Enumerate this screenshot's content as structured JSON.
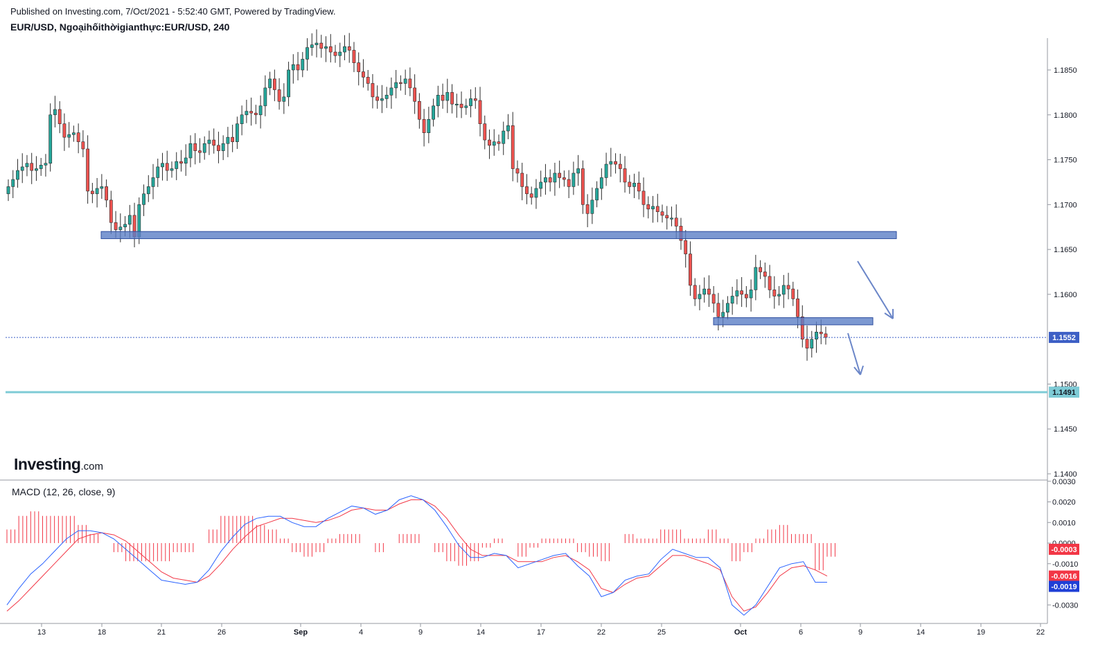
{
  "header": {
    "published": "Published on Investing.com, 7/Oct/2021 - 5:52:40 GMT, Powered by TradingView.",
    "symbol": "EUR/USD, Ngoạihốithờigianthực:EUR/USD, 240"
  },
  "logo": {
    "brand": "Investing",
    "suffix": ".com"
  },
  "chart_data": [
    {
      "type": "candlestick",
      "timeframe": "240",
      "price_axis_ticks": [
        "1.1850",
        "1.1800",
        "1.1750",
        "1.1700",
        "1.1650",
        "1.1600",
        "1.1500",
        "1.1450",
        "1.1400"
      ],
      "ylim": [
        1.1385,
        1.1885
      ],
      "x_ticks": [
        "13",
        "18",
        "21",
        "26",
        "Sep",
        "4",
        "9",
        "14",
        "17",
        "22",
        "25",
        "Oct",
        "6",
        "9",
        "14",
        "19",
        "22"
      ],
      "colors": {
        "up": "#26a69a",
        "down": "#ef5350",
        "zone": "#5b7ec6",
        "support_line": "#7ecbd6",
        "price_line": "#3b5fc7"
      },
      "candle_closes": [
        1.172,
        1.1728,
        1.1738,
        1.1742,
        1.1746,
        1.1738,
        1.174,
        1.1744,
        1.1746,
        1.18,
        1.1806,
        1.179,
        1.1775,
        1.1778,
        1.178,
        1.177,
        1.1762,
        1.1715,
        1.1712,
        1.1718,
        1.172,
        1.1705,
        1.168,
        1.1672,
        1.1675,
        1.1678,
        1.1688,
        1.1664,
        1.17,
        1.1712,
        1.172,
        1.173,
        1.1742,
        1.1746,
        1.1738,
        1.174,
        1.1748,
        1.1746,
        1.1752,
        1.1768,
        1.176,
        1.1758,
        1.1768,
        1.1772,
        1.1766,
        1.176,
        1.1768,
        1.1775,
        1.177,
        1.179,
        1.18,
        1.1804,
        1.1802,
        1.18,
        1.181,
        1.183,
        1.184,
        1.1828,
        1.1815,
        1.182,
        1.185,
        1.1856,
        1.185,
        1.1862,
        1.1875,
        1.1878,
        1.188,
        1.1874,
        1.1876,
        1.187,
        1.1866,
        1.187,
        1.1876,
        1.1872,
        1.1858,
        1.1848,
        1.1842,
        1.1835,
        1.182,
        1.1816,
        1.1818,
        1.1822,
        1.183,
        1.1836,
        1.1835,
        1.184,
        1.183,
        1.1815,
        1.1795,
        1.178,
        1.1795,
        1.181,
        1.1822,
        1.1816,
        1.1825,
        1.1812,
        1.1812,
        1.1808,
        1.181,
        1.1818,
        1.1816,
        1.179,
        1.1772,
        1.1766,
        1.177,
        1.1768,
        1.1782,
        1.1788,
        1.174,
        1.1735,
        1.172,
        1.1712,
        1.1708,
        1.1718,
        1.1725,
        1.173,
        1.1725,
        1.1735,
        1.173,
        1.1728,
        1.172,
        1.1735,
        1.174,
        1.17,
        1.169,
        1.1705,
        1.1718,
        1.173,
        1.1745,
        1.1748,
        1.1745,
        1.174,
        1.1725,
        1.172,
        1.1724,
        1.1715,
        1.17,
        1.1695,
        1.1698,
        1.1692,
        1.1688,
        1.1685,
        1.1685,
        1.1676,
        1.166,
        1.1645,
        1.161,
        1.1595,
        1.16,
        1.1606,
        1.16,
        1.159,
        1.1575,
        1.158,
        1.159,
        1.1598,
        1.1604,
        1.16,
        1.1596,
        1.1605,
        1.163,
        1.1625,
        1.162,
        1.1605,
        1.1598,
        1.16,
        1.161,
        1.1606,
        1.1595,
        1.1575,
        1.155,
        1.154,
        1.155,
        1.1558,
        1.1556,
        1.1552
      ],
      "zones": [
        {
          "label": "resistance-zone-upper",
          "low": 1.1662,
          "high": 1.167
        },
        {
          "label": "resistance-zone-lower",
          "low": 1.1566,
          "high": 1.1574
        }
      ],
      "price_line": 1.1552,
      "support_line": 1.1491,
      "price_labels": {
        "current": "1.1552",
        "support": "1.1491"
      },
      "arrows": [
        "down-arrow-right",
        "down-arrow-left"
      ]
    },
    {
      "type": "line",
      "title": "MACD (12, 26, close, 9)",
      "ylim": [
        -0.0038,
        0.003
      ],
      "axis_ticks": [
        "0.0030",
        "0.0020",
        "0.0010",
        "0.0000",
        "-0.0010",
        "-0.0030"
      ],
      "series": [
        {
          "name": "MACD",
          "color": "#2962ff"
        },
        {
          "name": "Signal",
          "color": "#f23645"
        },
        {
          "name": "Histogram",
          "color": "#f23645"
        }
      ],
      "macd_values": [
        -0.003,
        -0.0022,
        -0.0015,
        -0.001,
        -0.0004,
        0.0002,
        0.0006,
        0.0006,
        0.0005,
        0.0002,
        -0.0003,
        -0.0008,
        -0.0013,
        -0.0018,
        -0.0019,
        -0.002,
        -0.0019,
        -0.0013,
        -0.0004,
        0.0003,
        0.0009,
        0.0012,
        0.0013,
        0.0013,
        0.001,
        0.0008,
        0.0008,
        0.0012,
        0.0015,
        0.0018,
        0.0017,
        0.0014,
        0.0016,
        0.0021,
        0.0023,
        0.0021,
        0.0016,
        0.0008,
        -0.0001,
        -0.0007,
        -0.0007,
        -0.0005,
        -0.0006,
        -0.0012,
        -0.001,
        -0.0008,
        -0.0006,
        -0.0005,
        -0.0011,
        -0.0016,
        -0.0026,
        -0.0024,
        -0.0018,
        -0.0016,
        -0.0015,
        -0.0008,
        -0.0003,
        -0.0005,
        -0.0007,
        -0.0007,
        -0.0012,
        -0.003,
        -0.0035,
        -0.003,
        -0.0021,
        -0.0012,
        -0.001,
        -0.0009,
        -0.0019,
        -0.0019
      ],
      "signal_values": [
        -0.0033,
        -0.0028,
        -0.0022,
        -0.0016,
        -0.001,
        -0.0004,
        0.0002,
        0.0004,
        0.0005,
        0.0004,
        0.0001,
        -0.0004,
        -0.0009,
        -0.0014,
        -0.0017,
        -0.0018,
        -0.0019,
        -0.0016,
        -0.001,
        -0.0003,
        0.0003,
        0.0008,
        0.001,
        0.0012,
        0.0012,
        0.0011,
        0.001,
        0.0011,
        0.0013,
        0.0016,
        0.0017,
        0.0016,
        0.0016,
        0.0019,
        0.0021,
        0.0021,
        0.0018,
        0.0012,
        0.0004,
        -0.0003,
        -0.0006,
        -0.0006,
        -0.0006,
        -0.0009,
        -0.0009,
        -0.0009,
        -0.0007,
        -0.0006,
        -0.0009,
        -0.0013,
        -0.0022,
        -0.0024,
        -0.002,
        -0.0017,
        -0.0016,
        -0.0011,
        -0.0006,
        -0.0006,
        -0.0008,
        -0.001,
        -0.0013,
        -0.0026,
        -0.0033,
        -0.0031,
        -0.0024,
        -0.0016,
        -0.0012,
        -0.0011,
        -0.0013,
        -0.0016
      ],
      "value_labels": {
        "histogram": "-0.0003",
        "signal": "-0.0016",
        "macd": "-0.0019"
      }
    }
  ]
}
